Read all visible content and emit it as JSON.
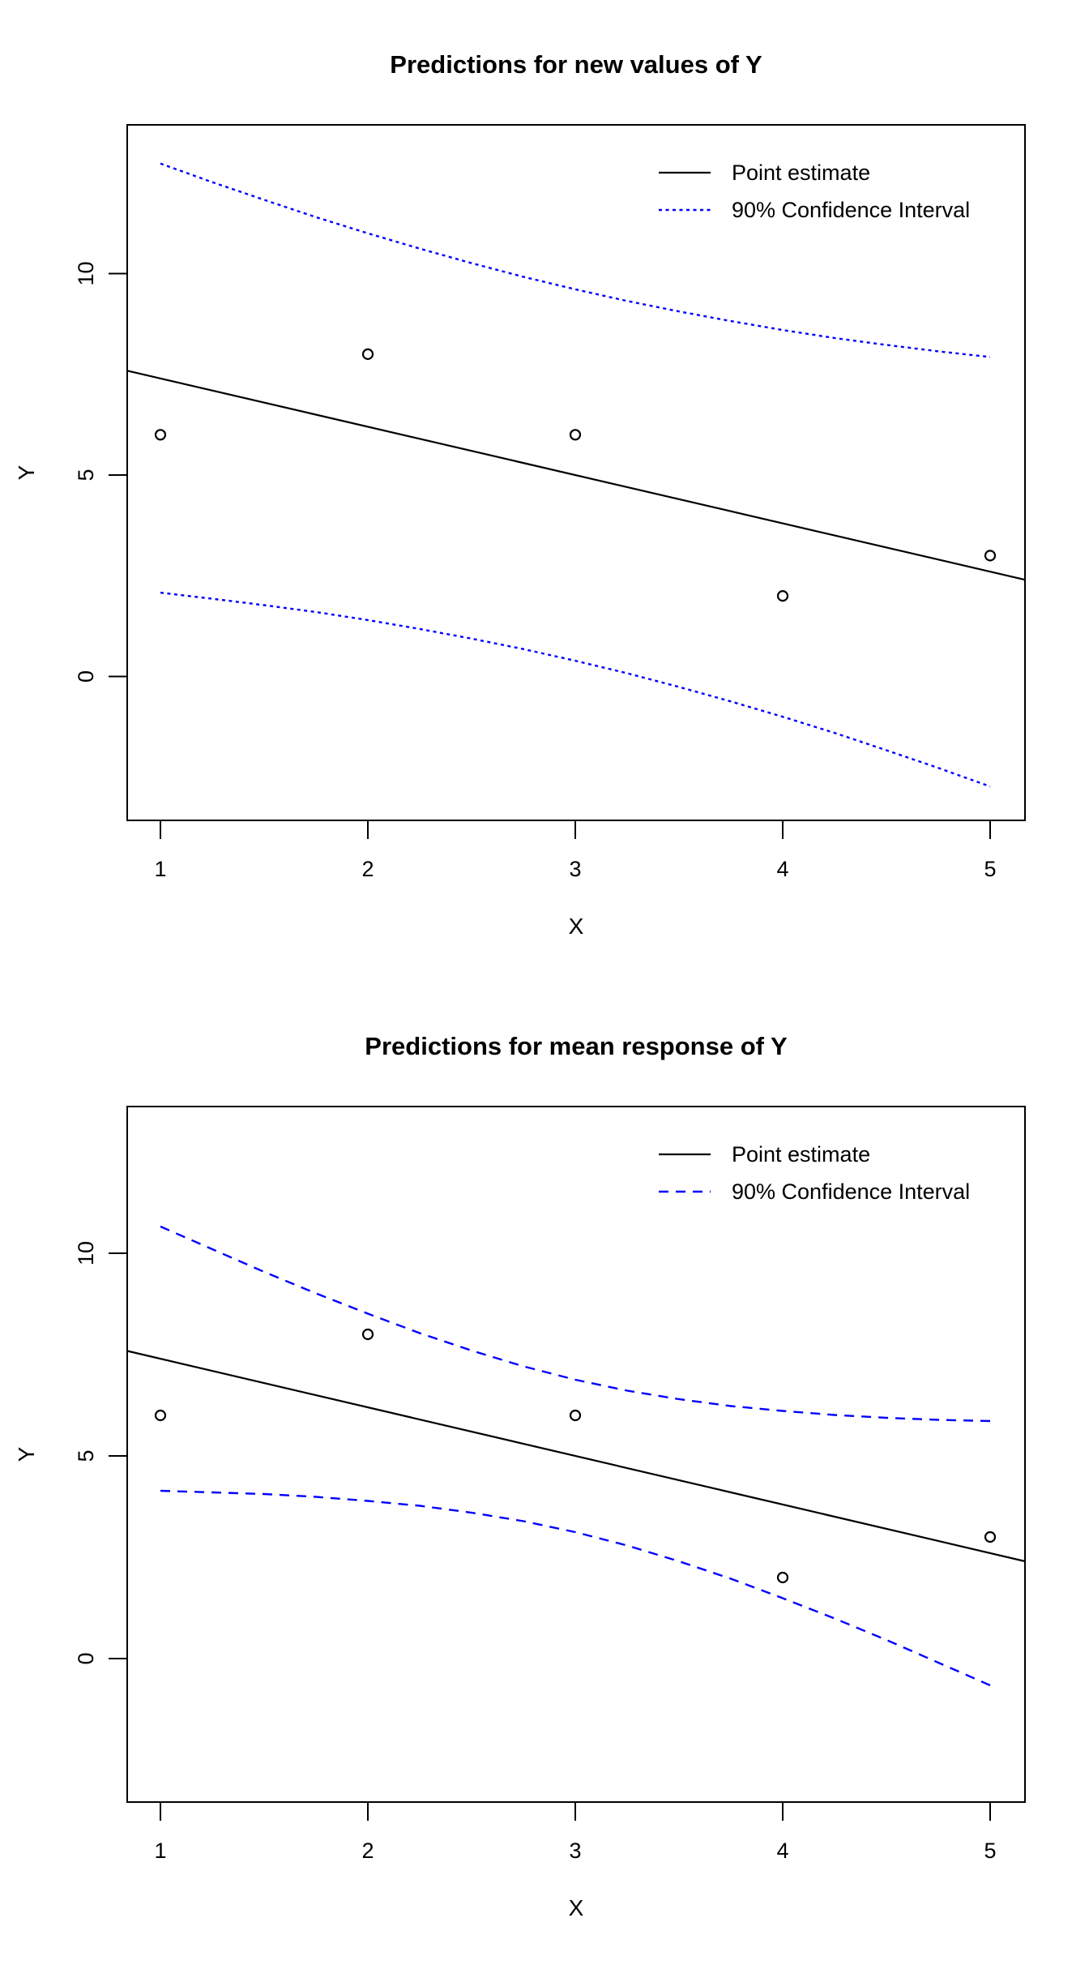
{
  "page": {
    "background": "#ffffff"
  },
  "colors": {
    "foreground": "#000000",
    "confidence": "#0000ff"
  },
  "chart_data": [
    {
      "type": "line",
      "title": "Predictions for new values of Y",
      "xlabel": "X",
      "ylabel": "Y",
      "x_ticks": [
        "1",
        "2",
        "3",
        "4",
        "5"
      ],
      "y_ticks": [
        "0",
        "5",
        "10"
      ],
      "x_tick_values": [
        1,
        2,
        3,
        4,
        5
      ],
      "y_tick_values": [
        0,
        5,
        10
      ],
      "xlim": [
        0.84,
        5.168
      ],
      "ylim": [
        -3.57,
        13.69
      ],
      "grid": false,
      "legend_position": "topright",
      "legend": [
        {
          "label": "Point estimate",
          "style": "solid",
          "color": "#000000"
        },
        {
          "label": "90% Confidence Interval",
          "style": "dotted",
          "color": "#0000ff"
        }
      ],
      "series": [
        {
          "name": "observations",
          "kind": "scatter",
          "marker": "open-circle",
          "color": "#000000",
          "x": [
            1,
            2,
            3,
            4,
            5
          ],
          "y": [
            6,
            8,
            6,
            2,
            3
          ]
        },
        {
          "name": "point-estimate",
          "kind": "line",
          "style": "solid",
          "color": "#000000",
          "x": [
            0.84,
            5.168
          ],
          "y": [
            7.59,
            2.4
          ]
        },
        {
          "name": "ci-upper",
          "kind": "line",
          "style": "dotted",
          "color": "#0000ff",
          "x": [
            1,
            1.25,
            1.5,
            1.75,
            2,
            2.25,
            2.5,
            2.75,
            3,
            3.25,
            3.5,
            3.75,
            4,
            4.25,
            4.5,
            4.75,
            5
          ],
          "y": [
            12.73,
            12.27,
            11.83,
            11.4,
            11.0,
            10.62,
            10.26,
            9.92,
            9.61,
            9.32,
            9.06,
            8.82,
            8.6,
            8.4,
            8.23,
            8.07,
            7.93
          ]
        },
        {
          "name": "ci-lower",
          "kind": "line",
          "style": "dotted",
          "color": "#0000ff",
          "x": [
            1,
            1.25,
            1.5,
            1.75,
            2,
            2.25,
            2.5,
            2.75,
            3,
            3.25,
            3.5,
            3.75,
            4,
            4.25,
            4.5,
            4.75,
            5
          ],
          "y": [
            2.08,
            1.93,
            1.77,
            1.6,
            1.4,
            1.18,
            0.94,
            0.68,
            0.39,
            0.08,
            -0.26,
            -0.62,
            -1.0,
            -1.4,
            -1.83,
            -2.27,
            -2.73
          ]
        }
      ]
    },
    {
      "type": "line",
      "title": "Predictions for mean response of Y",
      "xlabel": "X",
      "ylabel": "Y",
      "x_ticks": [
        "1",
        "2",
        "3",
        "4",
        "5"
      ],
      "y_ticks": [
        "0",
        "5",
        "10"
      ],
      "x_tick_values": [
        1,
        2,
        3,
        4,
        5
      ],
      "y_tick_values": [
        0,
        5,
        10
      ],
      "xlim": [
        0.84,
        5.168
      ],
      "ylim": [
        -3.54,
        13.62
      ],
      "grid": false,
      "legend_position": "topright",
      "legend": [
        {
          "label": "Point estimate",
          "style": "solid",
          "color": "#000000"
        },
        {
          "label": "90% Confidence Interval",
          "style": "dashed",
          "color": "#0000ff"
        }
      ],
      "series": [
        {
          "name": "observations",
          "kind": "scatter",
          "marker": "open-circle",
          "color": "#000000",
          "x": [
            1,
            2,
            3,
            4,
            5
          ],
          "y": [
            6,
            8,
            6,
            2,
            3
          ]
        },
        {
          "name": "point-estimate",
          "kind": "line",
          "style": "solid",
          "color": "#000000",
          "x": [
            0.84,
            5.168
          ],
          "y": [
            7.59,
            2.4
          ]
        },
        {
          "name": "ci-upper",
          "kind": "line",
          "style": "dashed",
          "color": "#0000ff",
          "x": [
            1,
            1.25,
            1.5,
            1.75,
            2,
            2.25,
            2.5,
            2.75,
            3,
            3.25,
            3.5,
            3.75,
            4,
            4.25,
            4.5,
            4.75,
            5
          ],
          "y": [
            10.66,
            10.1,
            9.54,
            9.01,
            8.51,
            8.03,
            7.6,
            7.21,
            6.88,
            6.61,
            6.4,
            6.23,
            6.11,
            6.01,
            5.94,
            5.89,
            5.86
          ]
        },
        {
          "name": "ci-lower",
          "kind": "line",
          "style": "dashed",
          "color": "#0000ff",
          "x": [
            1,
            1.25,
            1.5,
            1.75,
            2,
            2.25,
            2.5,
            2.75,
            3,
            3.25,
            3.5,
            3.75,
            4,
            4.25,
            4.5,
            4.75,
            5
          ],
          "y": [
            4.14,
            4.1,
            4.06,
            3.99,
            3.89,
            3.77,
            3.6,
            3.39,
            3.12,
            2.79,
            2.4,
            1.97,
            1.49,
            0.99,
            0.46,
            -0.1,
            -0.66
          ]
        }
      ]
    }
  ]
}
